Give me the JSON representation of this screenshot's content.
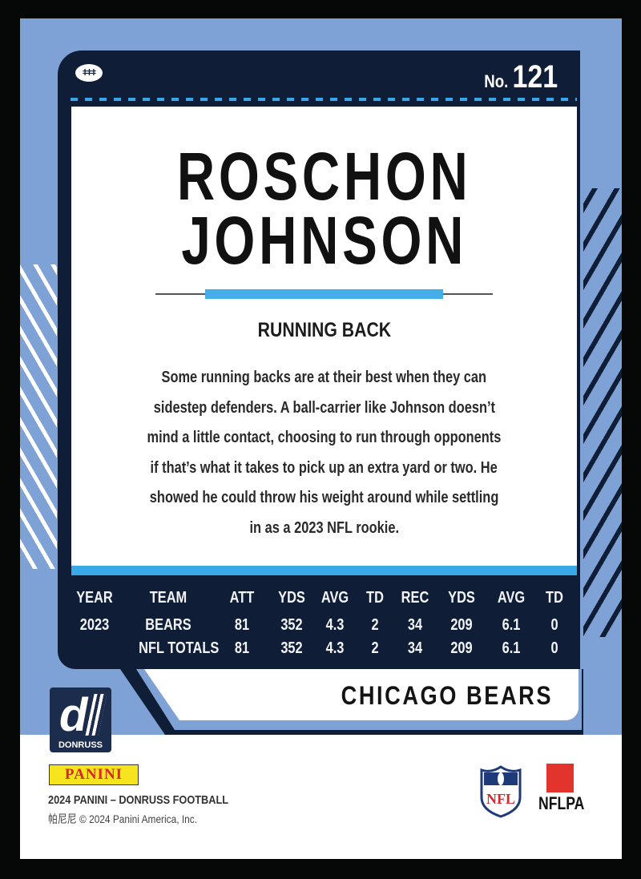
{
  "card": {
    "number_label": "No.",
    "number": "121",
    "name_lines": [
      "ROSCHON",
      "JOHNSON"
    ],
    "position": "RUNNING BACK",
    "bio_lines": [
      "Some running backs are at their best when they can",
      "sidestep defenders. A ball-carrier like Johnson doesn’t",
      "mind a little contact, choosing to run through opponents",
      "if that’s what it takes to pick up an extra yard or two. He",
      "showed he could throw his weight around while settling",
      "in as a 2023 NFL rookie."
    ],
    "team": "CHICAGO BEARS"
  },
  "stats": {
    "headers": [
      "YEAR",
      "TEAM",
      "ATT",
      "YDS",
      "AVG",
      "TD",
      "REC",
      "YDS",
      "AVG",
      "TD"
    ],
    "rows": [
      [
        "2023",
        "BEARS",
        "81",
        "352",
        "4.3",
        "2",
        "34",
        "209",
        "6.1",
        "0"
      ],
      [
        "",
        "NFL TOTALS",
        "81",
        "352",
        "4.3",
        "2",
        "34",
        "209",
        "6.1",
        "0"
      ]
    ]
  },
  "footer": {
    "donruss_logo_text": "DONRUSS",
    "panini_logo_text": "PANINI",
    "set_line": "2024 PANINI – DONRUSS FOOTBALL",
    "copyright_line": "帕尼尼 © 2024 Panini America, Inc.",
    "nfl_logo_text": "NFL",
    "nflpa_logo_text": "NFLPA"
  },
  "colors": {
    "card_blue": "#7fa2d6",
    "navy": "#0f1d36",
    "accent_blue": "#3aa9e8"
  }
}
